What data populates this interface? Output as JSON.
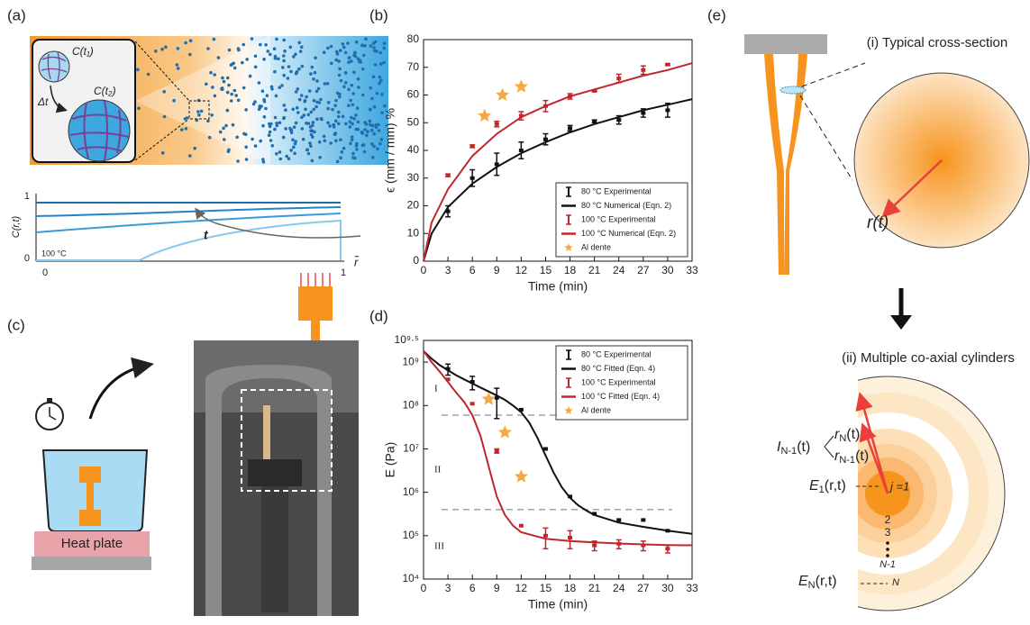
{
  "panels": {
    "a": {
      "label": "(a)",
      "c_t1": "C(t₁)",
      "delta_t": "Δt",
      "c_t2": "C(t₂)",
      "plot": {
        "ylabel": "C(r,t)",
        "yticks": [
          "0",
          "1"
        ],
        "xticks": [
          "0",
          "1"
        ],
        "temperature": "100 °C",
        "arrow_label": "t",
        "xlabel": "r̃"
      }
    },
    "c": {
      "label": "(c)",
      "heat_plate": "Heat plate"
    },
    "e": {
      "label": "(e)",
      "cross_section": "(i) Typical cross-section",
      "radius": "r(t)",
      "cylinders": "(ii) Multiple co-axial cylinders",
      "interface": {
        "base": "I",
        "sub": "N-1",
        "rest": "(t)"
      },
      "r_n": {
        "base": "r",
        "sub": "N",
        "rest": "(t)"
      },
      "r_n1": {
        "base": "r",
        "sub": "N-1",
        "rest": "(t)"
      },
      "e_1": {
        "base": "E",
        "sub": "1",
        "rest": "(r,t)"
      },
      "e_n": {
        "base": "E",
        "sub": "N",
        "rest": "(r,t)"
      },
      "layers": [
        "j =1",
        "2",
        "3",
        "N-1",
        "N"
      ]
    }
  },
  "chart_data": [
    {
      "type": "line",
      "label": "(b)",
      "xlabel": "Time (min)",
      "ylabel": "ϵ (mm / mm) %",
      "xlim": [
        0,
        33
      ],
      "xticks": [
        0,
        3,
        6,
        9,
        12,
        15,
        18,
        21,
        24,
        27,
        30,
        33
      ],
      "ylim": [
        0,
        80
      ],
      "yticks": [
        0,
        10,
        20,
        30,
        40,
        50,
        60,
        70,
        80
      ],
      "legend": "lower right",
      "series": [
        {
          "name": "80 °C Experimental",
          "style": "errorbar",
          "color": "#111111",
          "x": [
            3,
            6,
            9,
            12,
            15,
            18,
            21,
            24,
            27,
            30
          ],
          "values": [
            18,
            30,
            35,
            40,
            44,
            48,
            50.5,
            51,
            53.5,
            54.5
          ],
          "errors": [
            2,
            3,
            4,
            3,
            2,
            1,
            0.5,
            1.5,
            1.5,
            2.5
          ]
        },
        {
          "name": "80 °C Numerical (Eqn. 2)",
          "style": "line",
          "color": "#111111",
          "x": [
            0,
            1,
            3,
            6,
            9,
            12,
            15,
            18,
            21,
            24,
            27,
            30,
            33
          ],
          "values": [
            0,
            10,
            19.5,
            28,
            34,
            39,
            43,
            46.5,
            49.5,
            52,
            54.5,
            56.5,
            58.5
          ]
        },
        {
          "name": "100 °C Experimental",
          "style": "errorbar",
          "color": "#c0272d",
          "x": [
            3,
            6,
            9,
            12,
            15,
            18,
            21,
            24,
            27,
            30
          ],
          "values": [
            31,
            41.5,
            49.5,
            52.5,
            56,
            59.5,
            61.5,
            66,
            69,
            71
          ],
          "errors": [
            0.5,
            0.5,
            1,
            1.5,
            2,
            1,
            0.3,
            1.5,
            1.5,
            0.3
          ]
        },
        {
          "name": "100 °C Numerical (Eqn. 2)",
          "style": "line",
          "color": "#c0272d",
          "x": [
            0,
            1,
            3,
            6,
            9,
            12,
            15,
            18,
            21,
            24,
            27,
            30,
            33
          ],
          "values": [
            0,
            14,
            26,
            38,
            46,
            52,
            56,
            59.5,
            62,
            64.5,
            67,
            69,
            71.5
          ]
        },
        {
          "name": "Al dente",
          "style": "star",
          "color": "#f5a942",
          "x": [
            7.5,
            9.7,
            12
          ],
          "values": [
            52.5,
            60,
            63
          ]
        }
      ]
    },
    {
      "type": "line",
      "label": "(d)",
      "xlabel": "Time (min)",
      "ylabel": "E (Pa)",
      "yscale": "log",
      "xlim": [
        0,
        33
      ],
      "xticks": [
        0,
        3,
        6,
        9,
        12,
        15,
        18,
        21,
        24,
        27,
        30,
        33
      ],
      "ylim": [
        10000,
        3162277660
      ],
      "yticks": [
        {
          "value": 10000,
          "label": "10⁴"
        },
        {
          "value": 100000,
          "label": "10⁵"
        },
        {
          "value": 1000000,
          "label": "10⁶"
        },
        {
          "value": 10000000,
          "label": "10⁷"
        },
        {
          "value": 100000000,
          "label": "10⁸"
        },
        {
          "value": 1000000000,
          "label": "10⁹"
        },
        {
          "value": 3162277660,
          "label": "10⁹·⁵"
        }
      ],
      "legend": "upper right",
      "reference_lines": [
        60000000,
        400000
      ],
      "annotations": [
        "I",
        "II",
        "III"
      ],
      "series": [
        {
          "name": "80 °C Experimental",
          "style": "errorbar",
          "color": "#111111",
          "x": [
            3,
            6,
            9,
            12,
            15,
            18,
            21,
            24,
            27,
            30
          ],
          "values": [
            700000000,
            350000000,
            150000000,
            80000000,
            10000000,
            800000,
            320000,
            230000,
            230000,
            130000
          ],
          "errors": [
            200000000,
            120000000,
            100000000,
            0,
            0,
            0,
            0,
            0,
            0,
            0
          ]
        },
        {
          "name": "80 °C Fitted (Eqn. 4)",
          "style": "line",
          "color": "#111111",
          "x": [
            0,
            1,
            2,
            3,
            4,
            5,
            6,
            7,
            8,
            9,
            10,
            11,
            12,
            13,
            14,
            15,
            16,
            17,
            18,
            19,
            20,
            21,
            24,
            27,
            30,
            33
          ],
          "values": [
            1800000000,
            1200000000,
            850000000,
            650000000,
            500000000,
            400000000,
            320000000,
            260000000,
            210000000,
            170000000,
            135000000,
            100000000,
            70000000,
            40000000,
            18000000,
            7000000,
            2800000,
            1300000,
            750000,
            500000,
            380000,
            300000,
            200000,
            160000,
            130000,
            110000
          ]
        },
        {
          "name": "100 °C Experimental",
          "style": "errorbar",
          "color": "#c0272d",
          "x": [
            3,
            6,
            9,
            12,
            15,
            18,
            21,
            24,
            27,
            30
          ],
          "values": [
            400000000,
            110000000,
            9000000,
            170000,
            100000,
            90000,
            60000,
            65000,
            60000,
            50000
          ],
          "errors": [
            0,
            0,
            1000000,
            0,
            50000,
            40000,
            15000,
            15000,
            15000,
            10000
          ]
        },
        {
          "name": "100 °C Fitted (Eqn. 4)",
          "style": "line",
          "color": "#c0272d",
          "x": [
            0,
            1,
            2,
            3,
            4,
            5,
            6,
            7,
            8,
            9,
            10,
            11,
            12,
            15,
            18,
            21,
            24,
            27,
            30,
            33
          ],
          "values": [
            1800000000,
            1000000000,
            600000000,
            350000000,
            200000000,
            120000000,
            60000000,
            20000000,
            4000000,
            800000,
            300000,
            170000,
            120000,
            85000,
            75000,
            70000,
            66000,
            63000,
            61000,
            60000
          ]
        },
        {
          "name": "Al dente",
          "style": "star",
          "color": "#f5a942",
          "x": [
            8,
            10,
            12
          ],
          "values": [
            140000000,
            24000000,
            2300000
          ]
        }
      ]
    }
  ]
}
